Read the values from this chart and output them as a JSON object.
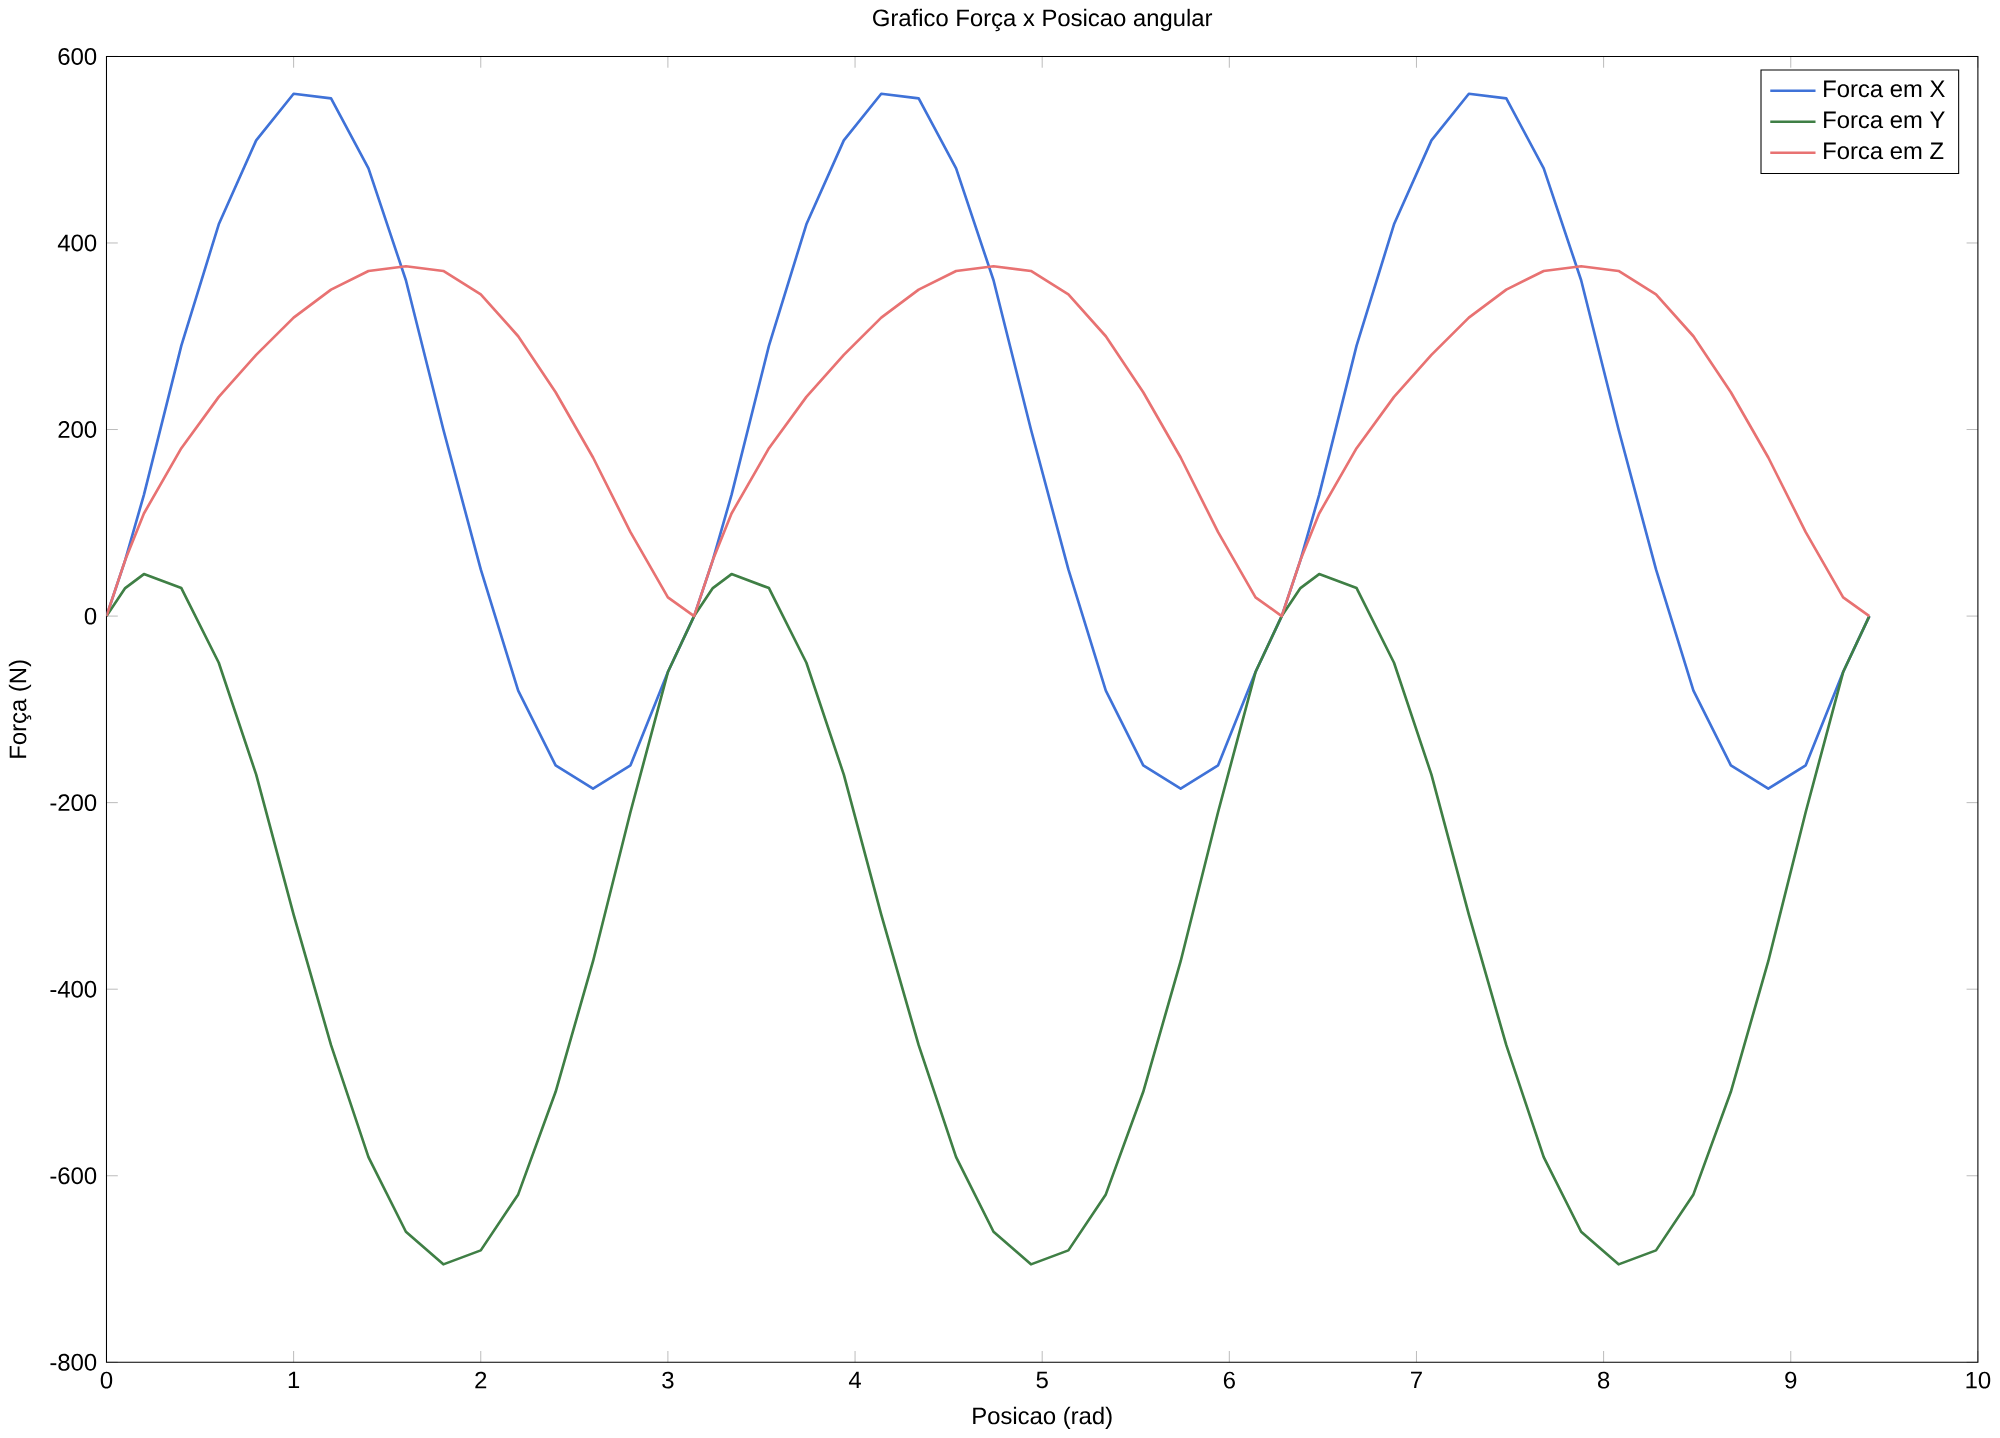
{
  "chart_data": {
    "type": "line",
    "title": "Grafico Força x Posicao angular",
    "xlabel": "Posicao (rad)",
    "ylabel": "Força (N)",
    "x": [
      0,
      0.1,
      0.2,
      0.4,
      0.6,
      0.8,
      1.0,
      1.2,
      1.4,
      1.6,
      1.8,
      2.0,
      2.2,
      2.4,
      2.6,
      2.8,
      3.0,
      3.14,
      3.24,
      3.34,
      3.54,
      3.74,
      3.94,
      4.14,
      4.34,
      4.54,
      4.74,
      4.94,
      5.14,
      5.34,
      5.54,
      5.74,
      5.94,
      6.14,
      6.28,
      6.38,
      6.48,
      6.68,
      6.88,
      7.08,
      7.28,
      7.48,
      7.68,
      7.88,
      8.08,
      8.28,
      8.48,
      8.68,
      8.88,
      9.08,
      9.28,
      9.42
    ],
    "series": [
      {
        "name": "Forca em X",
        "color": "#3f72d8",
        "values": [
          0,
          60,
          130,
          290,
          420,
          510,
          560,
          555,
          480,
          360,
          200,
          50,
          -80,
          -160,
          -185,
          -160,
          -60,
          0,
          60,
          130,
          290,
          420,
          510,
          560,
          555,
          480,
          360,
          200,
          50,
          -80,
          -160,
          -185,
          -160,
          -60,
          0,
          60,
          130,
          290,
          420,
          510,
          560,
          555,
          480,
          360,
          200,
          50,
          -80,
          -160,
          -185,
          -160,
          -60,
          0
        ]
      },
      {
        "name": "Forca em Y",
        "color": "#3f7f45",
        "values": [
          0,
          30,
          45,
          30,
          -50,
          -170,
          -320,
          -460,
          -580,
          -660,
          -695,
          -680,
          -620,
          -510,
          -370,
          -210,
          -60,
          0,
          30,
          45,
          30,
          -50,
          -170,
          -320,
          -460,
          -580,
          -660,
          -695,
          -680,
          -620,
          -510,
          -370,
          -210,
          -60,
          0,
          30,
          45,
          30,
          -50,
          -170,
          -320,
          -460,
          -580,
          -660,
          -695,
          -680,
          -620,
          -510,
          -370,
          -210,
          -60,
          0
        ]
      },
      {
        "name": "Forca em Z",
        "color": "#e87272",
        "values": [
          0,
          60,
          110,
          180,
          235,
          280,
          320,
          350,
          370,
          375,
          370,
          345,
          300,
          240,
          170,
          90,
          20,
          0,
          60,
          110,
          180,
          235,
          280,
          320,
          350,
          370,
          375,
          370,
          345,
          300,
          240,
          170,
          90,
          20,
          0,
          60,
          110,
          180,
          235,
          280,
          320,
          350,
          370,
          375,
          370,
          345,
          300,
          240,
          170,
          90,
          20,
          0
        ]
      }
    ],
    "xlim": [
      0,
      10
    ],
    "ylim": [
      -800,
      600
    ],
    "xticks": [
      0,
      1,
      2,
      3,
      4,
      5,
      6,
      7,
      8,
      9,
      10
    ],
    "yticks": [
      -800,
      -600,
      -400,
      -200,
      0,
      200,
      400,
      600
    ],
    "grid": false,
    "legend": "top right",
    "marker": "none",
    "line_style": "solid"
  }
}
